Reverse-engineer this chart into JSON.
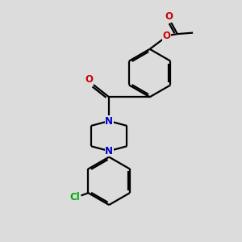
{
  "background_color": "#dcdcdc",
  "bond_color": "#000000",
  "nitrogen_color": "#0000cc",
  "oxygen_color": "#cc0000",
  "chlorine_color": "#00aa00",
  "line_width": 1.6,
  "figsize": [
    3.0,
    3.0
  ],
  "dpi": 100,
  "xlim": [
    0,
    10
  ],
  "ylim": [
    0,
    10
  ]
}
